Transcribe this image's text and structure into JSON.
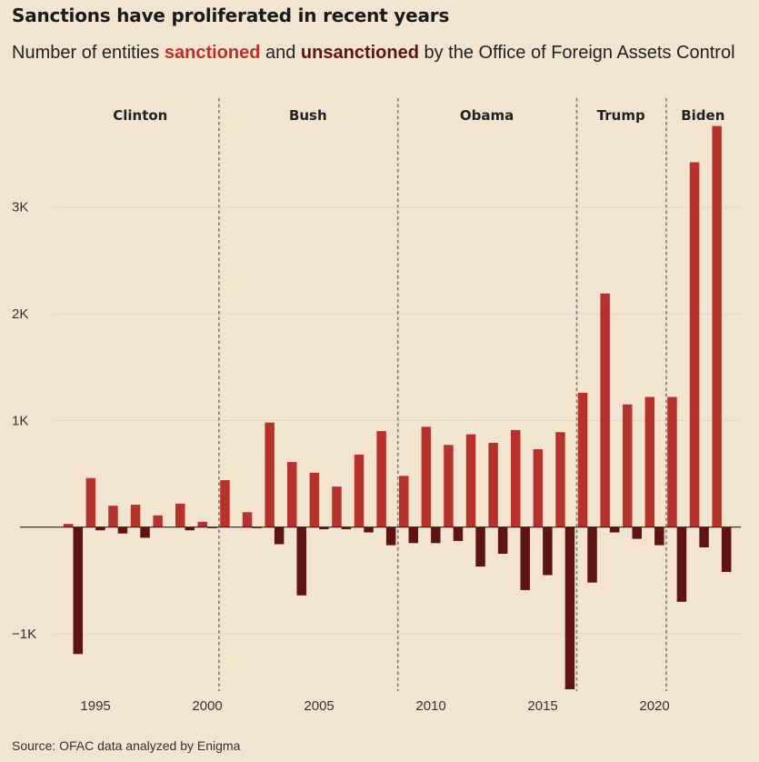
{
  "title": "Sanctions have proliferated in recent years",
  "subtitle": {
    "prefix": "Number of entities ",
    "sanctioned": "sanctioned",
    "middle": " and ",
    "unsanctioned": "unsanctioned",
    "suffix": " by the Office of Foreign Assets Control"
  },
  "source": "Source: OFAC data analyzed by Enigma",
  "colors": {
    "sanctioned": "#b8322d",
    "unsanctioned": "#5e1413",
    "background": "#f3e4cf",
    "grid": "#e5d7c4"
  },
  "chart_data": {
    "type": "bar",
    "title": "Sanctions have proliferated in recent years",
    "categories": [
      1994,
      1995,
      1996,
      1997,
      1998,
      1999,
      2000,
      2001,
      2002,
      2003,
      2004,
      2005,
      2006,
      2007,
      2008,
      2009,
      2010,
      2011,
      2012,
      2013,
      2014,
      2015,
      2016,
      2017,
      2018,
      2019,
      2020,
      2021,
      2022,
      2023
    ],
    "series": [
      {
        "name": "sanctioned",
        "values": [
          30,
          460,
          200,
          210,
          110,
          220,
          50,
          440,
          140,
          980,
          610,
          510,
          380,
          680,
          900,
          480,
          940,
          770,
          870,
          790,
          910,
          730,
          890,
          1260,
          2190,
          1150,
          1220,
          1220,
          3420,
          3760
        ]
      },
      {
        "name": "unsanctioned",
        "values": [
          -1190,
          -30,
          -60,
          -100,
          0,
          -30,
          -10,
          0,
          -10,
          -160,
          -640,
          -20,
          -20,
          -50,
          -170,
          -150,
          -150,
          -130,
          -370,
          -250,
          -590,
          -450,
          -1530,
          -520,
          -50,
          -110,
          -170,
          -700,
          -190,
          -420
        ]
      }
    ],
    "ylim": [
      -1520,
      3850
    ],
    "yticks": [
      {
        "value": 3000,
        "label": "3K"
      },
      {
        "value": 2000,
        "label": "2K"
      },
      {
        "value": 1000,
        "label": "1K"
      },
      {
        "value": -1000,
        "label": "−1K"
      }
    ],
    "xticks": [
      1995,
      2000,
      2005,
      2010,
      2015,
      2020
    ],
    "xticks_labels": [
      "1995",
      "2000",
      "2005",
      "2010",
      "2015",
      "2020"
    ],
    "dividers": [
      2000.5,
      2008.5,
      2016.5,
      2020.5
    ],
    "presidents": [
      {
        "name": "Clinton",
        "start": 1993.5,
        "end": 2000.5
      },
      {
        "name": "Bush",
        "start": 2000.5,
        "end": 2008.5
      },
      {
        "name": "Obama",
        "start": 2008.5,
        "end": 2016.5
      },
      {
        "name": "Trump",
        "start": 2016.5,
        "end": 2020.5
      },
      {
        "name": "Biden",
        "start": 2020.5,
        "end": 2023.5
      }
    ],
    "grid": true,
    "legend": "in subtitle"
  }
}
